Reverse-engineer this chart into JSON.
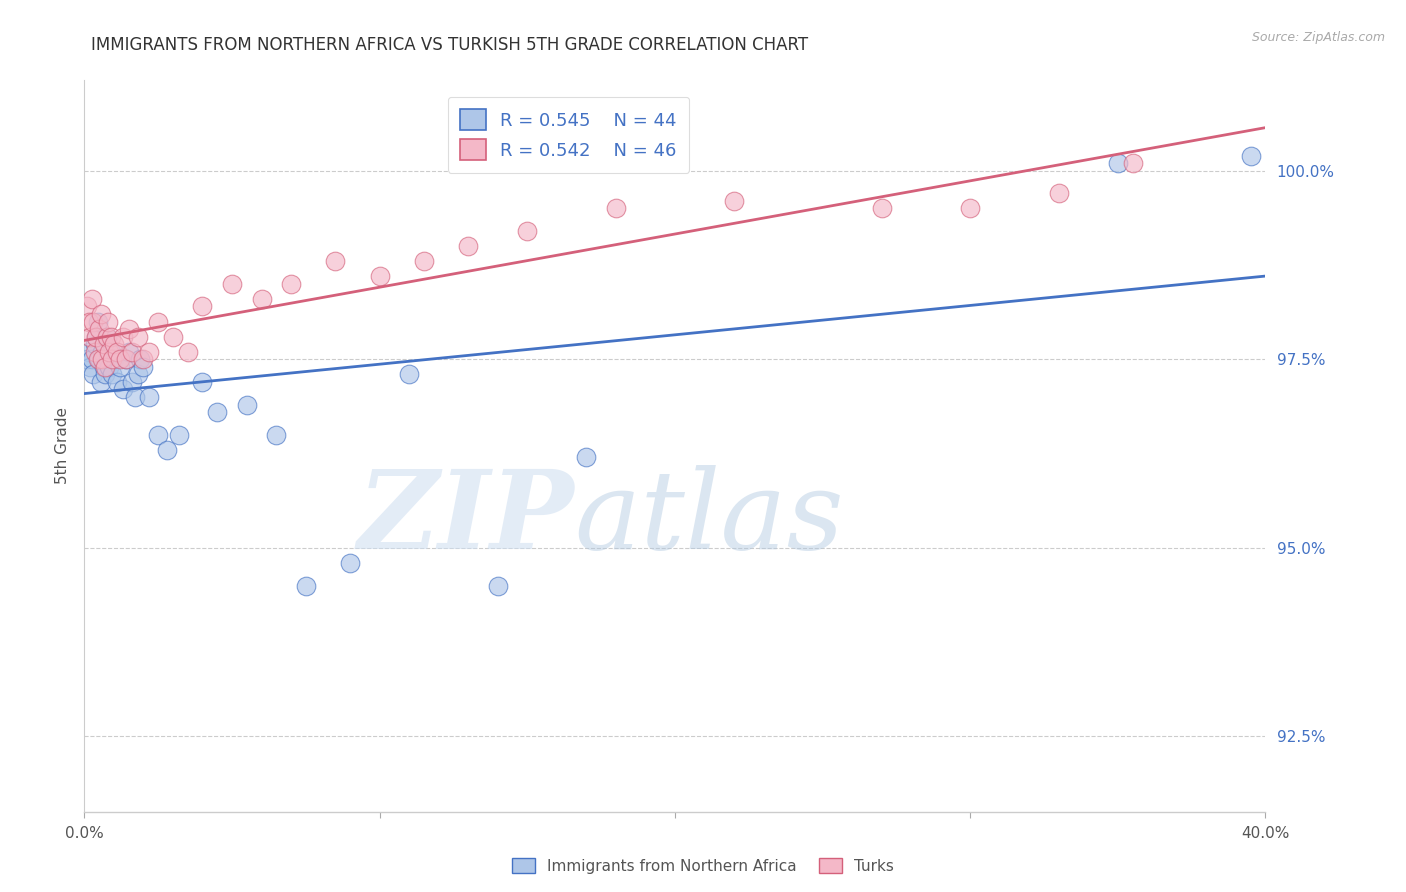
{
  "title": "IMMIGRANTS FROM NORTHERN AFRICA VS TURKISH 5TH GRADE CORRELATION CHART",
  "source": "Source: ZipAtlas.com",
  "ylabel": "5th Grade",
  "xlim": [
    0.0,
    40.0
  ],
  "ylim": [
    91.5,
    101.2
  ],
  "x_ticks": [
    0.0,
    10.0,
    20.0,
    30.0,
    40.0
  ],
  "x_tick_labels": [
    "0.0%",
    "",
    "",
    "",
    "40.0%"
  ],
  "y_ticks": [
    92.5,
    95.0,
    97.5,
    100.0
  ],
  "y_tick_labels": [
    "92.5%",
    "95.0%",
    "97.5%",
    "100.0%"
  ],
  "blue_R": 0.545,
  "blue_N": 44,
  "pink_R": 0.542,
  "pink_N": 46,
  "blue_color": "#aec6e8",
  "blue_line_color": "#4472c4",
  "pink_color": "#f4b8c8",
  "pink_line_color": "#d4607a",
  "legend_text_color": "#4472c4",
  "blue_scatter_x": [
    0.1,
    0.15,
    0.2,
    0.25,
    0.3,
    0.35,
    0.4,
    0.45,
    0.5,
    0.55,
    0.6,
    0.65,
    0.7,
    0.75,
    0.8,
    0.85,
    0.9,
    0.95,
    1.0,
    1.1,
    1.2,
    1.3,
    1.4,
    1.5,
    1.6,
    1.7,
    1.8,
    1.9,
    2.0,
    2.2,
    2.5,
    2.8,
    3.2,
    4.0,
    4.5,
    5.5,
    6.5,
    7.5,
    9.0,
    11.0,
    14.0,
    17.0,
    35.0,
    39.5
  ],
  "blue_scatter_y": [
    97.5,
    97.6,
    97.4,
    97.5,
    97.3,
    97.7,
    97.8,
    98.0,
    97.5,
    97.2,
    97.6,
    97.4,
    97.3,
    97.8,
    97.5,
    97.4,
    97.6,
    97.3,
    97.5,
    97.2,
    97.4,
    97.1,
    97.5,
    97.6,
    97.2,
    97.0,
    97.3,
    97.5,
    97.4,
    97.0,
    96.5,
    96.3,
    96.5,
    97.2,
    96.8,
    96.9,
    96.5,
    94.5,
    94.8,
    97.3,
    94.5,
    96.2,
    100.1,
    100.2
  ],
  "pink_scatter_x": [
    0.1,
    0.15,
    0.2,
    0.25,
    0.3,
    0.35,
    0.4,
    0.45,
    0.5,
    0.55,
    0.6,
    0.65,
    0.7,
    0.75,
    0.8,
    0.85,
    0.9,
    0.95,
    1.0,
    1.1,
    1.2,
    1.3,
    1.4,
    1.5,
    1.6,
    1.8,
    2.0,
    2.2,
    2.5,
    3.0,
    3.5,
    4.0,
    5.0,
    6.0,
    7.0,
    8.5,
    10.0,
    11.5,
    13.0,
    15.0,
    18.0,
    22.0,
    27.0,
    30.0,
    33.0,
    35.5
  ],
  "pink_scatter_y": [
    98.2,
    98.0,
    97.8,
    98.3,
    98.0,
    97.6,
    97.8,
    97.5,
    97.9,
    98.1,
    97.5,
    97.7,
    97.4,
    97.8,
    98.0,
    97.6,
    97.8,
    97.5,
    97.7,
    97.6,
    97.5,
    97.8,
    97.5,
    97.9,
    97.6,
    97.8,
    97.5,
    97.6,
    98.0,
    97.8,
    97.6,
    98.2,
    98.5,
    98.3,
    98.5,
    98.8,
    98.6,
    98.8,
    99.0,
    99.2,
    99.5,
    99.6,
    99.5,
    99.5,
    99.7,
    100.1
  ]
}
